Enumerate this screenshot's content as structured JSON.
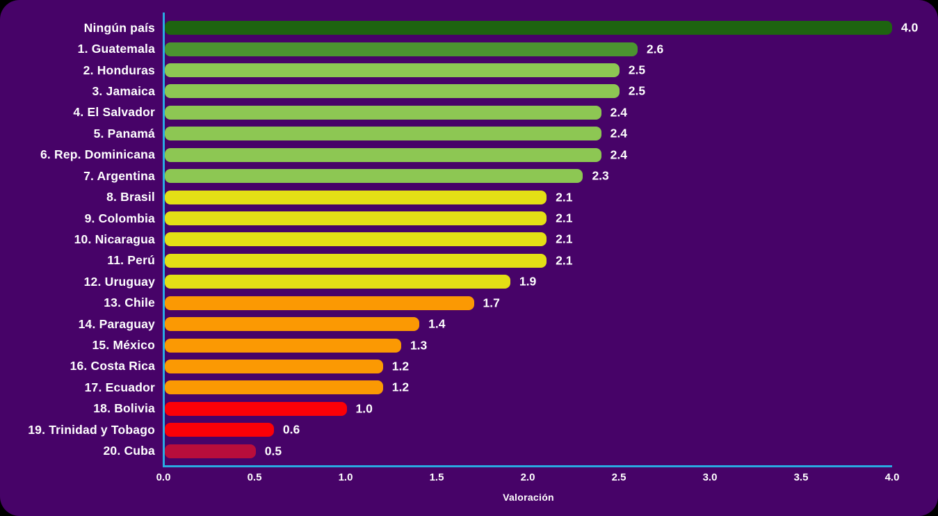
{
  "colors": {
    "background": "#470368",
    "axis": "#29ABE2",
    "text": "#FFFFFF"
  },
  "chart_data": {
    "type": "bar",
    "orientation": "horizontal",
    "title": "",
    "xlabel": "Valoración",
    "ylabel": "",
    "xlim": [
      0,
      4
    ],
    "grid": false,
    "legend": false,
    "xticks": [
      "0.0",
      "0.5",
      "1.0",
      "1.5",
      "2.0",
      "2.5",
      "3.0",
      "3.5",
      "4.0"
    ],
    "categories": [
      "Ningún país",
      "1. Guatemala",
      "2. Honduras",
      "3. Jamaica",
      "4. El Salvador",
      "5. Panamá",
      "6. Rep. Dominicana",
      "7. Argentina",
      "8. Brasil",
      "9. Colombia",
      "10. Nicaragua",
      "11. Perú",
      "12. Uruguay",
      "13. Chile",
      "14. Paraguay",
      "15. México",
      "16. Costa Rica",
      "17. Ecuador",
      "18. Bolivia",
      "19. Trinidad y Tobago",
      "20. Cuba"
    ],
    "values": [
      4.0,
      2.6,
      2.5,
      2.5,
      2.4,
      2.4,
      2.4,
      2.3,
      2.1,
      2.1,
      2.1,
      2.1,
      1.9,
      1.7,
      1.4,
      1.3,
      1.2,
      1.2,
      1.0,
      0.6,
      0.5
    ],
    "value_labels": [
      "4.0",
      "2.6",
      "2.5",
      "2.5",
      "2.4",
      "2.4",
      "2.4",
      "2.3",
      "2.1",
      "2.1",
      "2.1",
      "2.1",
      "1.9",
      "1.7",
      "1.4",
      "1.3",
      "1.2",
      "1.2",
      "1.0",
      "0.6",
      "0.5"
    ],
    "bar_colors": [
      "#1E6410",
      "#4B9430",
      "#8DC753",
      "#8DC753",
      "#8DC753",
      "#8DC753",
      "#8DC753",
      "#8DC753",
      "#E4DF15",
      "#E4DF15",
      "#E4DF15",
      "#E4DF15",
      "#E4DF15",
      "#FB9903",
      "#FB9903",
      "#FB9903",
      "#FB9903",
      "#FB9903",
      "#FB0007",
      "#FB0007",
      "#B80D3B"
    ]
  }
}
